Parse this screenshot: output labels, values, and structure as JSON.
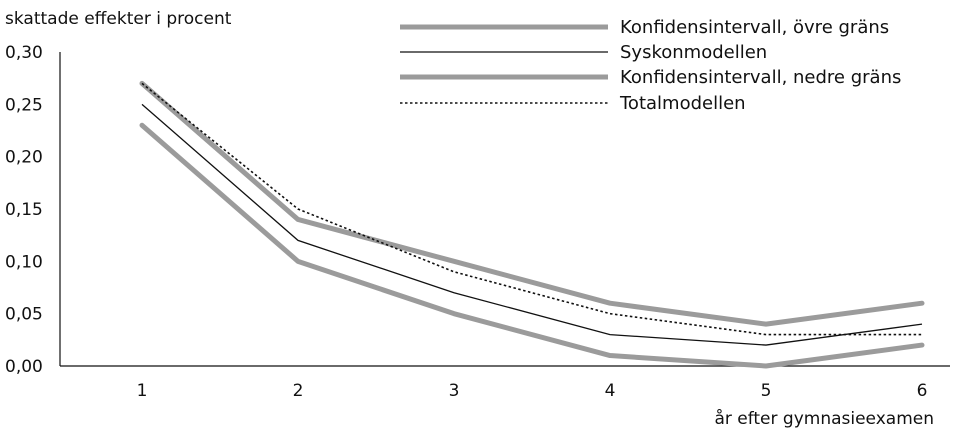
{
  "chart_data": {
    "type": "line",
    "ylabel": "skattade effekter i procent",
    "xlabel": "år efter gymnasieexamen",
    "categories": [
      "1",
      "2",
      "3",
      "4",
      "5",
      "6"
    ],
    "ylim": [
      0,
      0.3
    ],
    "yticks": [
      0.0,
      0.05,
      0.1,
      0.15,
      0.2,
      0.25,
      0.3
    ],
    "ytick_labels": [
      "0,00",
      "0,05",
      "0,10",
      "0,15",
      "0,20",
      "0,25",
      "0,30"
    ],
    "grid": false,
    "legend_position": "top-right",
    "series": [
      {
        "name": "Konfidensintervall, övre gräns",
        "values": [
          0.27,
          0.14,
          0.1,
          0.06,
          0.04,
          0.06
        ],
        "color": "#9b9b9b",
        "style": "thick"
      },
      {
        "name": "Syskonmodellen",
        "values": [
          0.25,
          0.12,
          0.07,
          0.03,
          0.02,
          0.04
        ],
        "color": "#111111",
        "style": "thin"
      },
      {
        "name": "Konfidensintervall, nedre gräns",
        "values": [
          0.23,
          0.1,
          0.05,
          0.01,
          0.0,
          0.02
        ],
        "color": "#9b9b9b",
        "style": "thick"
      },
      {
        "name": "Totalmodellen",
        "values": [
          0.27,
          0.15,
          0.09,
          0.05,
          0.03,
          0.03
        ],
        "color": "#111111",
        "style": "dotted"
      }
    ]
  }
}
